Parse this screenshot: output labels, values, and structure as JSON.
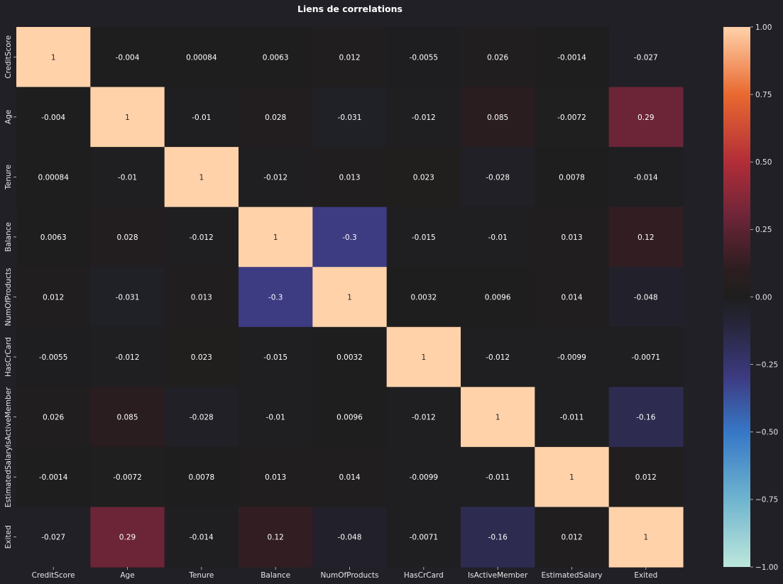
{
  "chart_data": {
    "type": "heatmap",
    "title": "Liens de correlations",
    "xlabel": "",
    "ylabel": "",
    "labels": [
      "CreditScore",
      "Age",
      "Tenure",
      "Balance",
      "NumOfProducts",
      "HasCrCard",
      "IsActiveMember",
      "EstimatedSalary",
      "Exited"
    ],
    "matrix": [
      [
        1,
        -0.004,
        0.00084,
        0.0063,
        0.012,
        -0.0055,
        0.026,
        -0.0014,
        -0.027
      ],
      [
        -0.004,
        1,
        -0.01,
        0.028,
        -0.031,
        -0.012,
        0.085,
        -0.0072,
        0.29
      ],
      [
        0.00084,
        -0.01,
        1,
        -0.012,
        0.013,
        0.023,
        -0.028,
        0.0078,
        -0.014
      ],
      [
        0.0063,
        0.028,
        -0.012,
        1,
        -0.3,
        -0.015,
        -0.01,
        0.013,
        0.12
      ],
      [
        0.012,
        -0.031,
        0.013,
        -0.3,
        1,
        0.0032,
        0.0096,
        0.014,
        -0.048
      ],
      [
        -0.0055,
        -0.012,
        0.023,
        -0.015,
        0.0032,
        1,
        -0.012,
        -0.0099,
        -0.0071
      ],
      [
        0.026,
        0.085,
        -0.028,
        -0.01,
        0.0096,
        -0.012,
        1,
        -0.011,
        -0.16
      ],
      [
        -0.0014,
        -0.0072,
        0.0078,
        0.013,
        0.014,
        -0.0099,
        -0.011,
        1,
        0.012
      ],
      [
        -0.027,
        0.29,
        -0.014,
        0.12,
        -0.048,
        -0.0071,
        -0.16,
        0.012,
        1
      ]
    ],
    "annotations": [
      [
        "1",
        "-0.004",
        "0.00084",
        "0.0063",
        "0.012",
        "-0.0055",
        "0.026",
        "-0.0014",
        "-0.027"
      ],
      [
        "-0.004",
        "1",
        "-0.01",
        "0.028",
        "-0.031",
        "-0.012",
        "0.085",
        "-0.0072",
        "0.29"
      ],
      [
        "0.00084",
        "-0.01",
        "1",
        "-0.012",
        "0.013",
        "0.023",
        "-0.028",
        "0.0078",
        "-0.014"
      ],
      [
        "0.0063",
        "0.028",
        "-0.012",
        "1",
        "-0.3",
        "-0.015",
        "-0.01",
        "0.013",
        "0.12"
      ],
      [
        "0.012",
        "-0.031",
        "0.013",
        "-0.3",
        "1",
        "0.0032",
        "0.0096",
        "0.014",
        "-0.048"
      ],
      [
        "-0.0055",
        "-0.012",
        "0.023",
        "-0.015",
        "0.0032",
        "1",
        "-0.012",
        "-0.0099",
        "-0.0071"
      ],
      [
        "0.026",
        "0.085",
        "-0.028",
        "-0.01",
        "0.0096",
        "-0.012",
        "1",
        "-0.011",
        "-0.16"
      ],
      [
        "-0.0014",
        "-0.0072",
        "0.0078",
        "0.013",
        "0.014",
        "-0.0099",
        "-0.011",
        "1",
        "0.012"
      ],
      [
        "-0.027",
        "0.29",
        "-0.014",
        "0.12",
        "-0.048",
        "-0.0071",
        "-0.16",
        "0.012",
        "1"
      ]
    ],
    "colorbar": {
      "range": [
        -1,
        1
      ],
      "ticks": [
        1,
        0.75,
        0.5,
        0.25,
        0,
        -0.25,
        -0.5,
        -0.75,
        -1
      ],
      "tick_labels": [
        "1.00",
        "0.75",
        "0.50",
        "0.25",
        "0.00",
        "−0.25",
        "−0.50",
        "−0.75",
        "−1.00"
      ],
      "colormap": "icefire"
    },
    "grid": false
  },
  "colors": {
    "background": "#212027",
    "text": "#e6e6e6"
  }
}
